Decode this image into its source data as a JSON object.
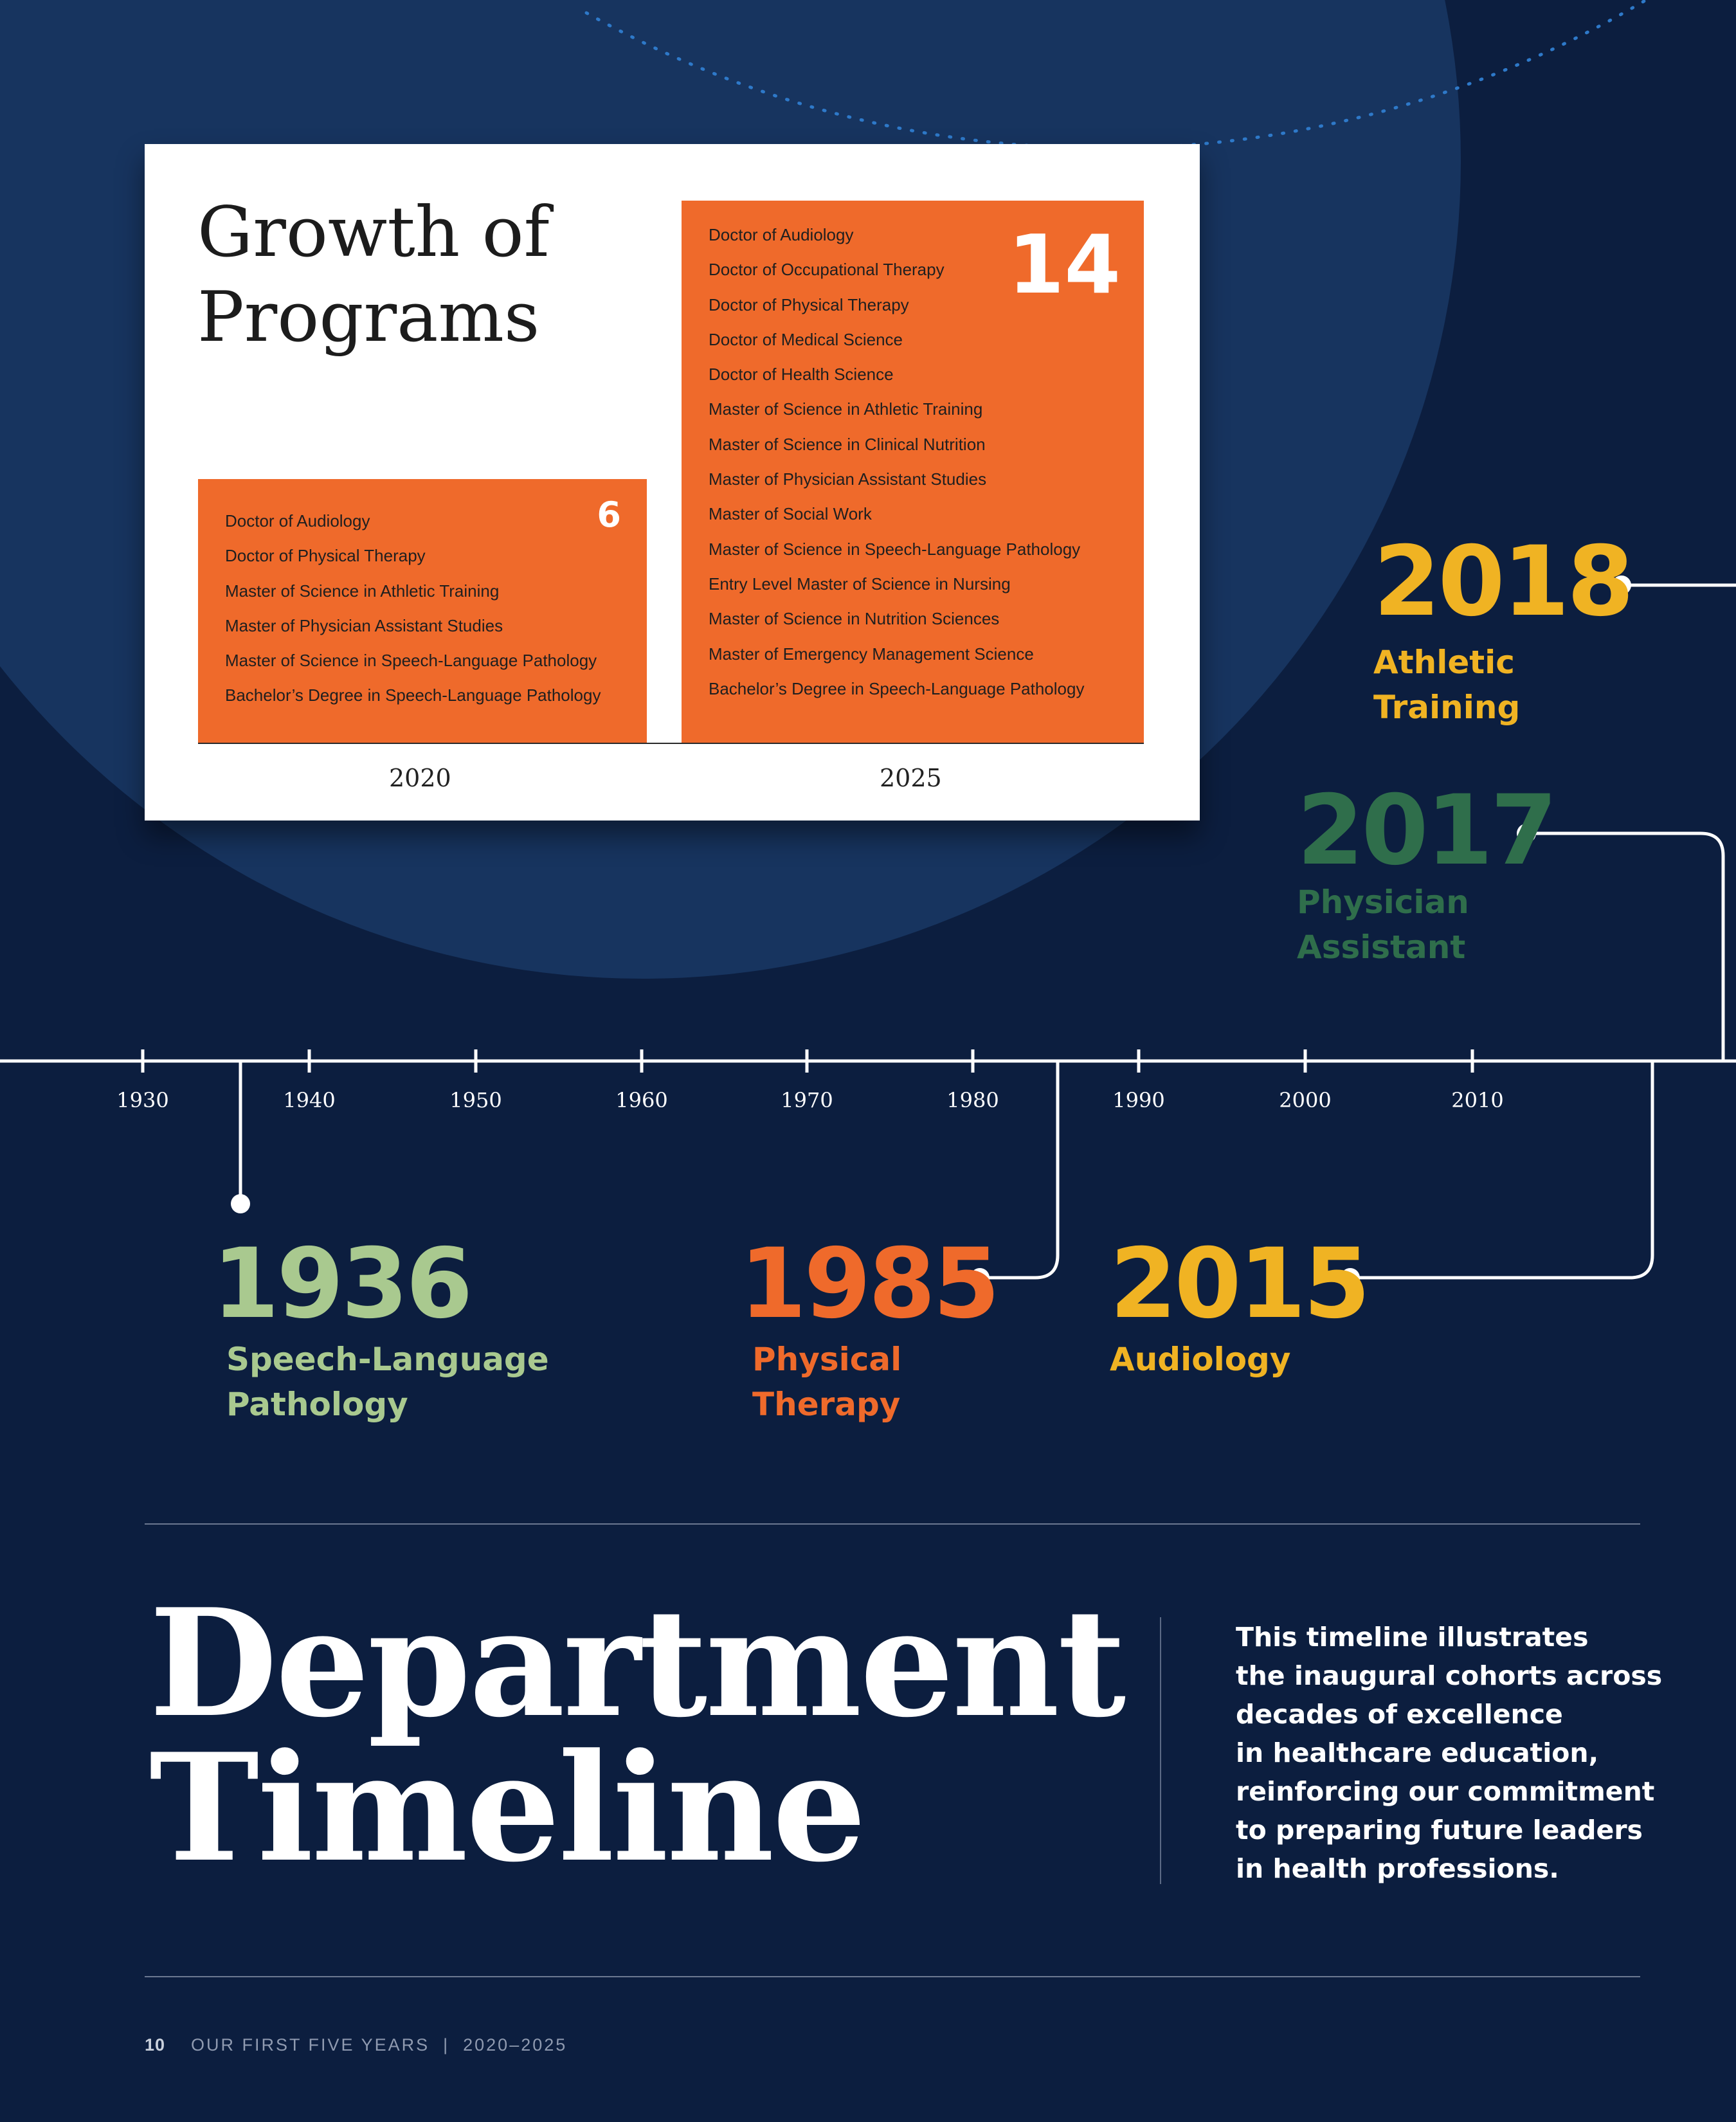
{
  "card": {
    "title": "Growth of\nPrograms",
    "col2020": {
      "year": "2020",
      "count": "6",
      "programs": [
        "Doctor of Audiology",
        "Doctor of Physical Therapy",
        "Master of Science in Athletic Training",
        "Master of Physician Assistant Studies",
        "Master of Science in Speech-Language Pathology",
        "Bachelor’s Degree in Speech-Language Pathology"
      ]
    },
    "col2025": {
      "year": "2025",
      "count": "14",
      "programs": [
        "Doctor of Audiology",
        "Doctor of Occupational Therapy",
        "Doctor of Physical Therapy",
        "Doctor of Medical Science",
        "Doctor of Health Science",
        "Master of Science in Athletic Training",
        "Master of Science in Clinical Nutrition",
        "Master of Physician Assistant Studies",
        "Master of Social Work",
        "Master of Science in Speech-Language Pathology",
        "Entry Level Master of Science in Nursing",
        "Master of Science in Nutrition Sciences",
        "Master of Emergency Management Science",
        "Bachelor’s Degree in Speech-Language Pathology"
      ]
    }
  },
  "timeline": {
    "ticks": [
      "1930",
      "1940",
      "1950",
      "1960",
      "1970",
      "1980",
      "1990",
      "2000",
      "2010"
    ],
    "events": [
      {
        "year": "1936",
        "label": "Speech-Language\nPathology",
        "color": "#a9c98f"
      },
      {
        "year": "1985",
        "label": "Physical\nTherapy",
        "color": "#ef6a2b"
      },
      {
        "year": "2015",
        "label": "Audiology",
        "color": "#f0b323"
      },
      {
        "year": "2017",
        "label": "Physician\nAssistant",
        "color": "#2f6e4b"
      },
      {
        "year": "2018",
        "label": "Athletic\nTraining",
        "color": "#f0b323"
      }
    ]
  },
  "heading": {
    "title": "Department\nTimeline",
    "description": "This timeline illustrates\nthe inaugural cohorts across\ndecades of excellence\nin healthcare education,\nreinforcing our commitment\nto preparing future leaders\nin health professions."
  },
  "footer": {
    "page_number": "10",
    "text": "OUR FIRST FIVE YEARS  |  2020–2025"
  }
}
